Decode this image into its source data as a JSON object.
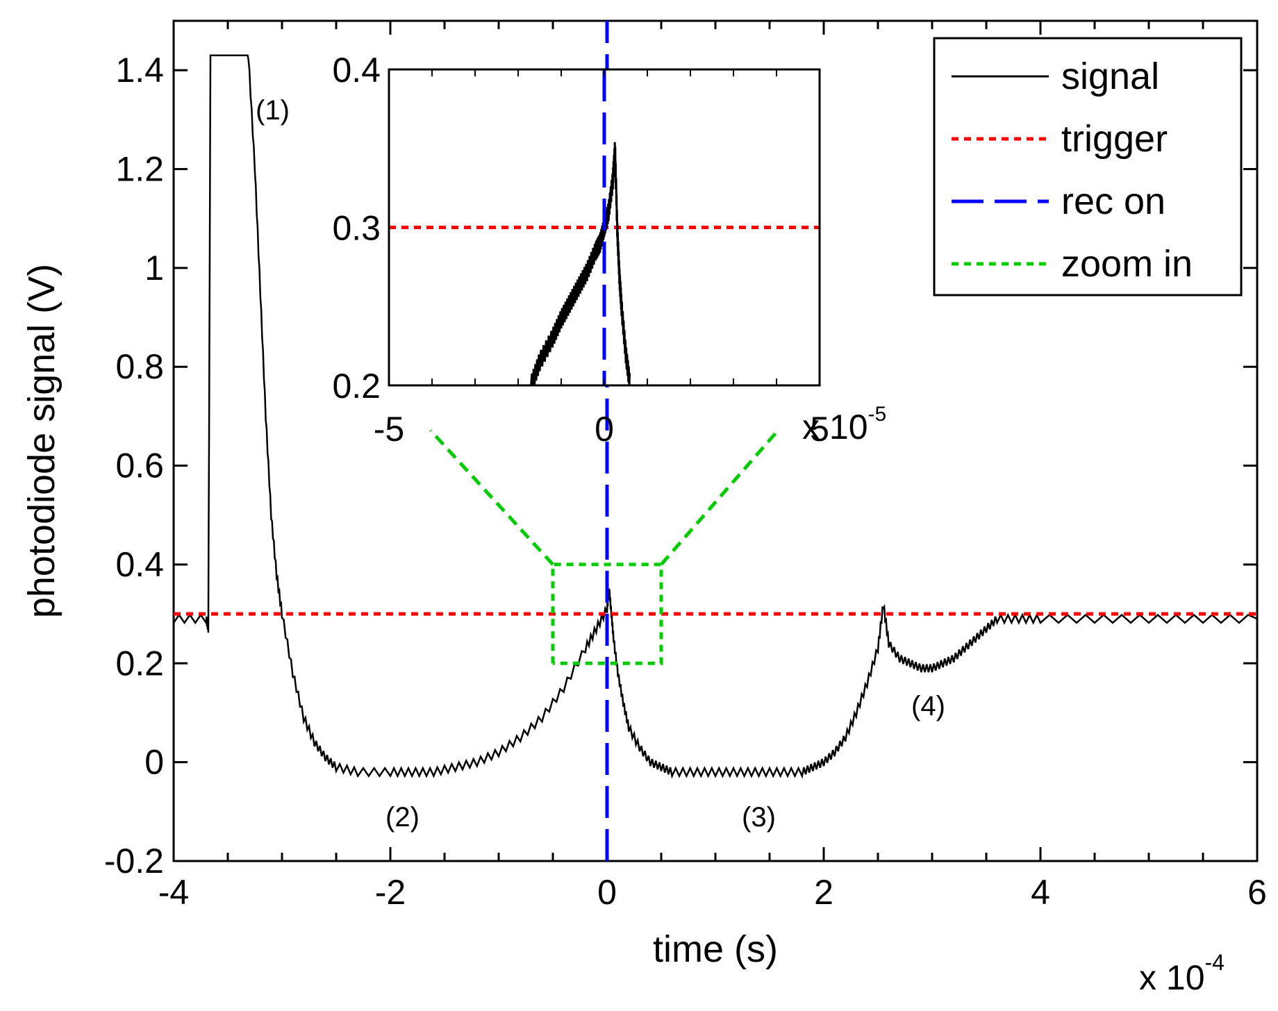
{
  "chart_data": {
    "type": "line",
    "xlabel": "time (s)",
    "ylabel": "photodiode signal (V)",
    "x_multiplier_label": "x 10",
    "x_multiplier_exp": "-4",
    "xlim": [
      -4,
      6
    ],
    "ylim": [
      -0.2,
      1.5
    ],
    "x_ticks": [
      -4,
      -2,
      0,
      2,
      4,
      6
    ],
    "x_tick_labels": [
      "-4",
      "-2",
      "0",
      "2",
      "4",
      "6"
    ],
    "y_ticks": [
      -0.2,
      0,
      0.2,
      0.4,
      0.6,
      0.8,
      1.0,
      1.2,
      1.4
    ],
    "y_tick_labels": [
      "-0.2",
      "0",
      "0.2",
      "0.4",
      "0.6",
      "0.8",
      "1",
      "1.2",
      "1.4"
    ],
    "colors": {
      "signal": "#000000",
      "trigger": "#ff0000",
      "rec_on": "#0000ff",
      "zoom_in": "#00cc00"
    },
    "series": [
      {
        "name": "signal",
        "style": "solid",
        "x": [
          -4.0,
          -3.7,
          -3.68,
          -3.66,
          -3.65,
          -3.62,
          -3.55,
          -3.45,
          -3.35,
          -3.31,
          -3.25,
          -3.2,
          -3.15,
          -3.1,
          -3.05,
          -3.0,
          -2.9,
          -2.8,
          -2.7,
          -2.6,
          -2.5,
          -2.3,
          -2.0,
          -1.8,
          -1.6,
          -1.4,
          -1.2,
          -1.0,
          -0.8,
          -0.6,
          -0.4,
          -0.2,
          -0.1,
          0.0,
          0.02,
          0.04,
          0.06,
          0.1,
          0.15,
          0.2,
          0.3,
          0.4,
          0.5,
          0.6,
          0.8,
          1.0,
          1.2,
          1.4,
          1.6,
          1.8,
          1.9,
          2.0,
          2.1,
          2.2,
          2.3,
          2.4,
          2.5,
          2.55,
          2.6,
          2.7,
          2.8,
          2.9,
          3.0,
          3.1,
          3.2,
          3.3,
          3.4,
          3.5,
          3.6,
          3.8,
          4.0,
          4.5,
          5.0,
          5.5,
          6.0
        ],
        "y": [
          0.29,
          0.29,
          0.27,
          1.43,
          1.43,
          1.43,
          1.43,
          1.43,
          1.43,
          1.43,
          1.2,
          0.95,
          0.7,
          0.5,
          0.38,
          0.3,
          0.18,
          0.09,
          0.04,
          0.01,
          -0.01,
          -0.02,
          -0.02,
          -0.02,
          -0.02,
          -0.01,
          0.0,
          0.02,
          0.05,
          0.09,
          0.15,
          0.23,
          0.27,
          0.31,
          0.35,
          0.3,
          0.25,
          0.18,
          0.12,
          0.07,
          0.03,
          0.0,
          -0.01,
          -0.02,
          -0.02,
          -0.02,
          -0.02,
          -0.02,
          -0.02,
          -0.02,
          -0.01,
          0.0,
          0.02,
          0.05,
          0.1,
          0.16,
          0.23,
          0.32,
          0.24,
          0.21,
          0.2,
          0.19,
          0.19,
          0.2,
          0.21,
          0.23,
          0.25,
          0.27,
          0.29,
          0.29,
          0.29,
          0.29,
          0.29,
          0.29,
          0.29
        ]
      },
      {
        "name": "trigger",
        "style": "dotted",
        "x": [
          -4,
          6
        ],
        "y": [
          0.3,
          0.3
        ]
      },
      {
        "name": "rec on",
        "style": "dashed",
        "x": [
          0,
          0
        ],
        "y": [
          -0.2,
          1.5
        ]
      },
      {
        "name": "zoom in",
        "style": "dotted",
        "x": [
          -0.5,
          -0.5,
          0.5,
          0.5,
          -0.5
        ],
        "y": [
          0.2,
          0.4,
          0.4,
          0.2,
          0.2
        ]
      }
    ],
    "legend": {
      "placement": "top-right",
      "entries": [
        "signal",
        "trigger",
        "rec on",
        "zoom in"
      ]
    },
    "annotations": [
      "(1)",
      "(2)",
      "(3)",
      "(4)"
    ],
    "inset": {
      "xlim": [
        -5,
        5
      ],
      "ylim": [
        0.2,
        0.4
      ],
      "x_ticks": [
        -5,
        0,
        5
      ],
      "x_tick_labels": [
        "-5",
        "0",
        "5"
      ],
      "x_multiplier_label": "x 10",
      "x_multiplier_exp": "-5",
      "y_ticks": [
        0.2,
        0.3,
        0.4
      ],
      "y_tick_labels": [
        "0.2",
        "0.3",
        "0.4"
      ],
      "signal": {
        "x": [
          -1.7,
          -1.5,
          -1.2,
          -1.0,
          -0.8,
          -0.6,
          -0.4,
          -0.2,
          -0.1,
          0.0,
          0.1,
          0.2,
          0.25,
          0.3,
          0.35,
          0.4,
          0.5,
          0.6
        ],
        "y": [
          0.2,
          0.215,
          0.23,
          0.242,
          0.252,
          0.262,
          0.272,
          0.285,
          0.29,
          0.3,
          0.31,
          0.33,
          0.35,
          0.3,
          0.27,
          0.25,
          0.22,
          0.2
        ]
      },
      "trigger": {
        "y": 0.3
      },
      "rec_on": {
        "x": 0
      }
    }
  }
}
